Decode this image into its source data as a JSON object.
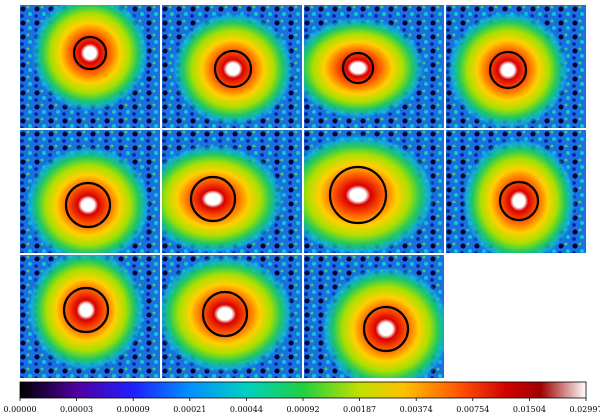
{
  "colorbar": {
    "ticks": [
      "0.00000",
      "0.00003",
      "0.00009",
      "0.00021",
      "0.00044",
      "0.00092",
      "0.00187",
      "0.00374",
      "0.00754",
      "0.01504",
      "0.02997"
    ]
  }
}
